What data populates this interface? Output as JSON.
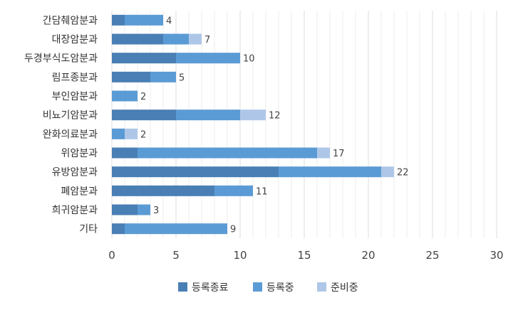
{
  "chart_data": {
    "type": "bar",
    "orientation": "horizontal",
    "stacked": true,
    "categories": [
      "간담췌암분과",
      "대장암분과",
      "두경부식도암분과",
      "림프종분과",
      "부인암분과",
      "비뇨기암분과",
      "완화의료분과",
      "위암분과",
      "유방암분과",
      "폐암분과",
      "희귀암분과",
      "기타"
    ],
    "series": [
      {
        "name": "등록종료",
        "color": "#4a7fb5",
        "values": [
          1,
          4,
          5,
          3,
          0,
          5,
          0,
          2,
          13,
          8,
          2,
          1
        ]
      },
      {
        "name": "등록중",
        "color": "#5b9bd5",
        "values": [
          3,
          2,
          5,
          2,
          2,
          5,
          1,
          14,
          8,
          3,
          1,
          8
        ]
      },
      {
        "name": "준비중",
        "color": "#aec7e8",
        "values": [
          0,
          1,
          0,
          0,
          0,
          2,
          1,
          1,
          1,
          0,
          0,
          0
        ]
      }
    ],
    "totals": [
      "4",
      "7",
      "10",
      "5",
      "2",
      "12",
      "2",
      "17",
      "22",
      "11",
      "3",
      "9"
    ],
    "xlim": [
      0,
      30
    ],
    "xticks": [
      "0",
      "5",
      "10",
      "15",
      "20",
      "25",
      "30"
    ],
    "minor_step": 1,
    "grid": true,
    "legend_position": "bottom",
    "title": "",
    "xlabel": "",
    "ylabel": ""
  }
}
